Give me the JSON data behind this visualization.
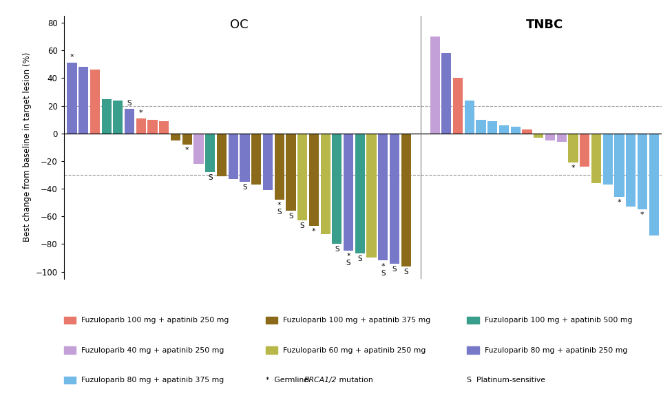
{
  "title_oc": "OC",
  "title_tnbc": "TNBC",
  "ylabel": "Best change from baseline in target lesion (%)",
  "ylim": [
    -105,
    85
  ],
  "yticks": [
    -100,
    -80,
    -60,
    -40,
    -20,
    0,
    20,
    40,
    60,
    80
  ],
  "dashed_lines": [
    20,
    -30
  ],
  "colors": {
    "fuz100_apa250": "#E8786A",
    "fuz40_apa250": "#C4A0D8",
    "fuz60_apa250": "#B8B84A",
    "fuz80_apa250": "#7878C8",
    "fuz100_apa375": "#8B6B1A",
    "fuz100_apa500": "#3A9E8C",
    "fuz80_apa375": "#72BAE8"
  },
  "bars_oc": [
    {
      "value": 51,
      "color": "fuz80_apa250",
      "star": true,
      "S": false
    },
    {
      "value": 48,
      "color": "fuz80_apa250",
      "star": false,
      "S": false
    },
    {
      "value": 46,
      "color": "fuz100_apa250",
      "star": false,
      "S": false
    },
    {
      "value": 25,
      "color": "fuz100_apa500",
      "star": false,
      "S": false
    },
    {
      "value": 24,
      "color": "fuz100_apa500",
      "star": false,
      "S": false
    },
    {
      "value": 18,
      "color": "fuz80_apa250",
      "star": false,
      "S": true
    },
    {
      "value": 11,
      "color": "fuz100_apa250",
      "star": true,
      "S": false
    },
    {
      "value": 10,
      "color": "fuz100_apa250",
      "star": false,
      "S": false
    },
    {
      "value": 9,
      "color": "fuz100_apa250",
      "star": false,
      "S": false
    },
    {
      "value": -5,
      "color": "fuz100_apa375",
      "star": false,
      "S": false
    },
    {
      "value": -8,
      "color": "fuz100_apa375",
      "star": true,
      "S": false
    },
    {
      "value": -22,
      "color": "fuz40_apa250",
      "star": false,
      "S": false
    },
    {
      "value": -28,
      "color": "fuz100_apa500",
      "star": false,
      "S": true
    },
    {
      "value": -31,
      "color": "fuz100_apa375",
      "star": false,
      "S": false
    },
    {
      "value": -33,
      "color": "fuz80_apa250",
      "star": false,
      "S": false
    },
    {
      "value": -35,
      "color": "fuz80_apa250",
      "star": false,
      "S": true
    },
    {
      "value": -37,
      "color": "fuz100_apa375",
      "star": false,
      "S": false
    },
    {
      "value": -41,
      "color": "fuz80_apa250",
      "star": false,
      "S": false
    },
    {
      "value": -48,
      "color": "fuz100_apa375",
      "star": true,
      "S": true
    },
    {
      "value": -56,
      "color": "fuz100_apa375",
      "star": false,
      "S": true
    },
    {
      "value": -63,
      "color": "fuz60_apa250",
      "star": false,
      "S": true
    },
    {
      "value": -67,
      "color": "fuz100_apa375",
      "star": true,
      "S": false
    },
    {
      "value": -73,
      "color": "fuz60_apa250",
      "star": false,
      "S": false
    },
    {
      "value": -80,
      "color": "fuz100_apa500",
      "star": false,
      "S": true
    },
    {
      "value": -85,
      "color": "fuz80_apa250",
      "star": true,
      "S": true
    },
    {
      "value": -87,
      "color": "fuz100_apa500",
      "star": false,
      "S": true
    },
    {
      "value": -90,
      "color": "fuz60_apa250",
      "star": false,
      "S": false
    },
    {
      "value": -92,
      "color": "fuz80_apa250",
      "star": true,
      "S": true
    },
    {
      "value": -94,
      "color": "fuz80_apa250",
      "star": false,
      "S": true
    },
    {
      "value": -96,
      "color": "fuz100_apa375",
      "star": false,
      "S": true
    }
  ],
  "bars_tnbc": [
    {
      "value": 70,
      "color": "fuz40_apa250",
      "star": false,
      "S": false
    },
    {
      "value": 58,
      "color": "fuz80_apa250",
      "star": false,
      "S": false
    },
    {
      "value": 40,
      "color": "fuz100_apa250",
      "star": false,
      "S": false
    },
    {
      "value": 24,
      "color": "fuz80_apa375",
      "star": false,
      "S": false
    },
    {
      "value": 10,
      "color": "fuz80_apa375",
      "star": false,
      "S": false
    },
    {
      "value": 9,
      "color": "fuz80_apa375",
      "star": false,
      "S": false
    },
    {
      "value": 6,
      "color": "fuz80_apa375",
      "star": false,
      "S": false
    },
    {
      "value": 5,
      "color": "fuz80_apa375",
      "star": false,
      "S": false
    },
    {
      "value": 3,
      "color": "fuz100_apa250",
      "star": false,
      "S": false
    },
    {
      "value": -3,
      "color": "fuz60_apa250",
      "star": false,
      "S": false
    },
    {
      "value": -5,
      "color": "fuz40_apa250",
      "star": false,
      "S": false
    },
    {
      "value": -6,
      "color": "fuz40_apa250",
      "star": false,
      "S": false
    },
    {
      "value": -21,
      "color": "fuz60_apa250",
      "star": true,
      "S": false
    },
    {
      "value": -24,
      "color": "fuz100_apa250",
      "star": false,
      "S": false
    },
    {
      "value": -36,
      "color": "fuz60_apa250",
      "star": false,
      "S": false
    },
    {
      "value": -37,
      "color": "fuz80_apa375",
      "star": false,
      "S": false
    },
    {
      "value": -46,
      "color": "fuz80_apa375",
      "star": true,
      "S": false
    },
    {
      "value": -53,
      "color": "fuz80_apa375",
      "star": false,
      "S": false
    },
    {
      "value": -55,
      "color": "fuz80_apa375",
      "star": true,
      "S": false
    },
    {
      "value": -74,
      "color": "fuz80_apa375",
      "star": false,
      "S": false
    }
  ],
  "legend_items": [
    {
      "label": "Fuzuloparib 100 mg + apatinib 250 mg",
      "color": "fuz100_apa250"
    },
    {
      "label": "Fuzuloparib 100 mg + apatinib 375 mg",
      "color": "fuz100_apa375"
    },
    {
      "label": "Fuzuloparib 100 mg + apatinib 500 mg",
      "color": "fuz100_apa500"
    },
    {
      "label": "Fuzuloparib 40 mg + apatinib 250 mg",
      "color": "fuz40_apa250"
    },
    {
      "label": "Fuzuloparib 60 mg + apatinib 250 mg",
      "color": "fuz60_apa250"
    },
    {
      "label": "Fuzuloparib 80 mg + apatinib 250 mg",
      "color": "fuz80_apa250"
    },
    {
      "label": "Fuzuloparib 80 mg + apatinib 375 mg",
      "color": "fuz80_apa375"
    }
  ]
}
